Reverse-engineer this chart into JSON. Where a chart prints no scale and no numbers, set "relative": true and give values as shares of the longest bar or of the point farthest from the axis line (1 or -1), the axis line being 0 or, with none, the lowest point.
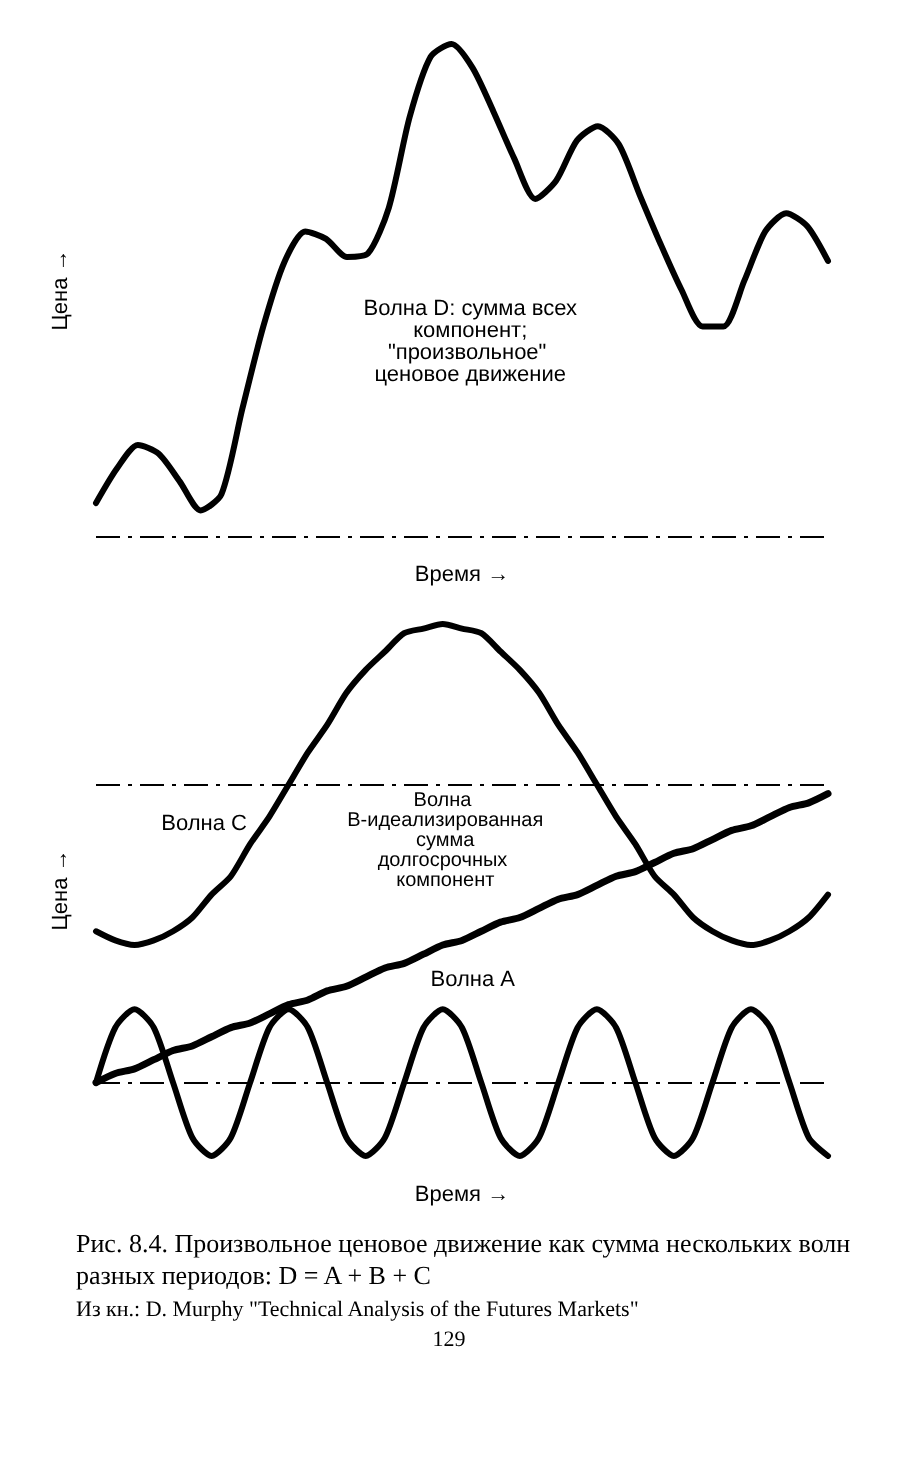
{
  "chart_data": [
    {
      "type": "line",
      "relative": true,
      "xlabel": "Время →",
      "ylabel": "Цена →",
      "categories": [
        null,
        null,
        null,
        null,
        null,
        null,
        null,
        null,
        null,
        null,
        null,
        null,
        null,
        null,
        null,
        null,
        null,
        null,
        null,
        null,
        null,
        null,
        null,
        null,
        null,
        null,
        null,
        null,
        null,
        null,
        null,
        null,
        null,
        null,
        null,
        null
      ],
      "grid": false,
      "legend": false,
      "marker": "none",
      "line_style": "solid",
      "series": [
        {
          "name": "Волна D: сумма всех компонент; \"произвольное\" ценовое движение",
          "color": "#000000",
          "values": [
            0.067,
            0.137,
            0.185,
            0.167,
            0.111,
            0.052,
            0.085,
            0.259,
            0.426,
            0.556,
            0.619,
            0.604,
            0.567,
            0.574,
            0.667,
            0.852,
            0.974,
            1,
            0.952,
            0.863,
            0.767,
            0.685,
            0.722,
            0.804,
            0.833,
            0.796,
            0.693,
            0.593,
            0.5,
            0.426,
            0.426,
            0.519,
            0.619,
            0.656,
            0.63,
            0.559
          ]
        }
      ],
      "ref_lines": [
        {
          "axis": "y",
          "value": 0,
          "line_style": "dashed",
          "color": "#000000"
        }
      ]
    },
    {
      "type": "line",
      "relative": true,
      "xlabel": "Время →",
      "ylabel": "Цена →",
      "categories": [
        null,
        null,
        null,
        null,
        null,
        null,
        null,
        null,
        null,
        null,
        null,
        null,
        null,
        null,
        null,
        null,
        null,
        null,
        null,
        null,
        null,
        null,
        null,
        null,
        null,
        null,
        null,
        null,
        null,
        null,
        null,
        null,
        null,
        null,
        null,
        null,
        null,
        null,
        null
      ],
      "grid": false,
      "legend": false,
      "marker": "none",
      "line_style": "solid",
      "series": [
        {
          "name": "Волна C",
          "color": "#000000",
          "values": [
            0.33,
            0.31,
            0.3,
            0.31,
            0.33,
            0.36,
            0.41,
            0.45,
            0.52,
            0.58,
            0.65,
            0.72,
            0.78,
            0.85,
            0.9,
            0.94,
            0.98,
            0.99,
            1.0,
            0.99,
            0.98,
            0.94,
            0.9,
            0.85,
            0.78,
            0.72,
            0.65,
            0.58,
            0.52,
            0.45,
            0.41,
            0.36,
            0.33,
            0.31,
            0.3,
            0.31,
            0.33,
            0.36,
            0.41
          ]
        },
        {
          "name": "Волна B-идеализированная сумма долгосрочных компонент",
          "color": "#000000",
          "values": [
            0,
            0.02,
            0.03,
            0.05,
            0.07,
            0.08,
            0.1,
            0.12,
            0.13,
            0.15,
            0.17,
            0.18,
            0.2,
            0.21,
            0.23,
            0.25,
            0.26,
            0.28,
            0.3,
            0.31,
            0.33,
            0.35,
            0.36,
            0.38,
            0.4,
            0.41,
            0.43,
            0.45,
            0.46,
            0.48,
            0.5,
            0.51,
            0.53,
            0.55,
            0.56,
            0.58,
            0.6,
            0.61,
            0.63
          ]
        },
        {
          "name": "Волна A",
          "color": "#000000",
          "values": [
            0,
            0.12,
            0.16,
            0.12,
            0,
            -0.12,
            -0.16,
            -0.12,
            0,
            0.12,
            0.16,
            0.12,
            0,
            -0.12,
            -0.16,
            -0.12,
            0,
            0.12,
            0.16,
            0.12,
            0,
            -0.12,
            -0.16,
            -0.12,
            0,
            0.12,
            0.16,
            0.12,
            0,
            -0.12,
            -0.16,
            -0.12,
            0,
            0.12,
            0.16,
            0.12,
            0,
            -0.12,
            -0.16
          ]
        }
      ],
      "ref_lines": [
        {
          "axis": "y",
          "value": 0,
          "line_style": "dashed",
          "color": "#000000"
        },
        {
          "axis": "y",
          "value": 0.65,
          "line_style": "dashed",
          "color": "#000000"
        }
      ],
      "annotations": [
        "Рис. 8.4. Произвольное ценовое движение как сумма нескольких волн разных периодов: D = A + B + C",
        "Из кн.: D. Murphy \"Technical Analysis of the Futures Markets\"",
        "129"
      ]
    }
  ]
}
